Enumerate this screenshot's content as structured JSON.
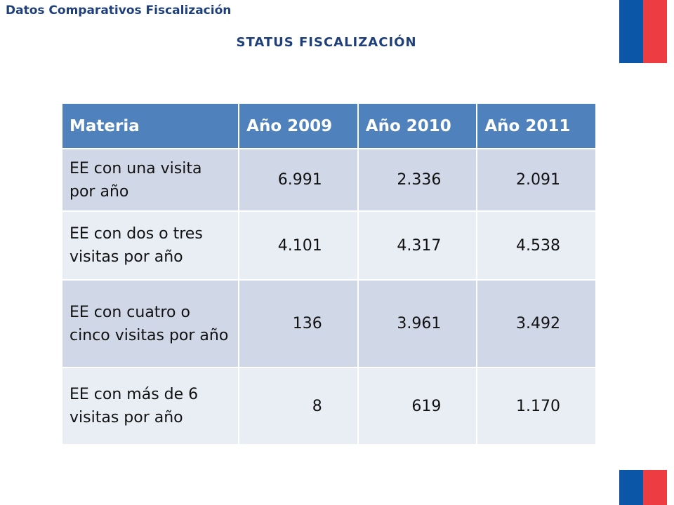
{
  "header": {
    "title": "Datos Comparativos Fiscalización",
    "subtitle": "STATUS FISCALIZACIÓN"
  },
  "colors": {
    "title": "#1f3f7a",
    "header_fill": "#4f81bd",
    "row_dark": "#d0d8e8",
    "row_light": "#e9edf4",
    "flag_blue": "#0b56a6",
    "flag_red": "#ee3d42"
  },
  "table": {
    "columns": [
      "Materia",
      "Año 2009",
      "Año 2010",
      "Año 2011"
    ],
    "rows": [
      {
        "materia": "EE con una visita por año",
        "y2009": "6.991",
        "y2010": "2.336",
        "y2011": "2.091"
      },
      {
        "materia": "EE con dos o tres visitas por año",
        "y2009": "4.101",
        "y2010": "4.317",
        "y2011": "4.538"
      },
      {
        "materia": "EE con cuatro o cinco visitas por año",
        "y2009": "136",
        "y2010": "3.961",
        "y2011": "3.492"
      },
      {
        "materia": "EE con más de 6 visitas por año",
        "y2009": "8",
        "y2010": "619",
        "y2011": "1.170"
      }
    ]
  }
}
